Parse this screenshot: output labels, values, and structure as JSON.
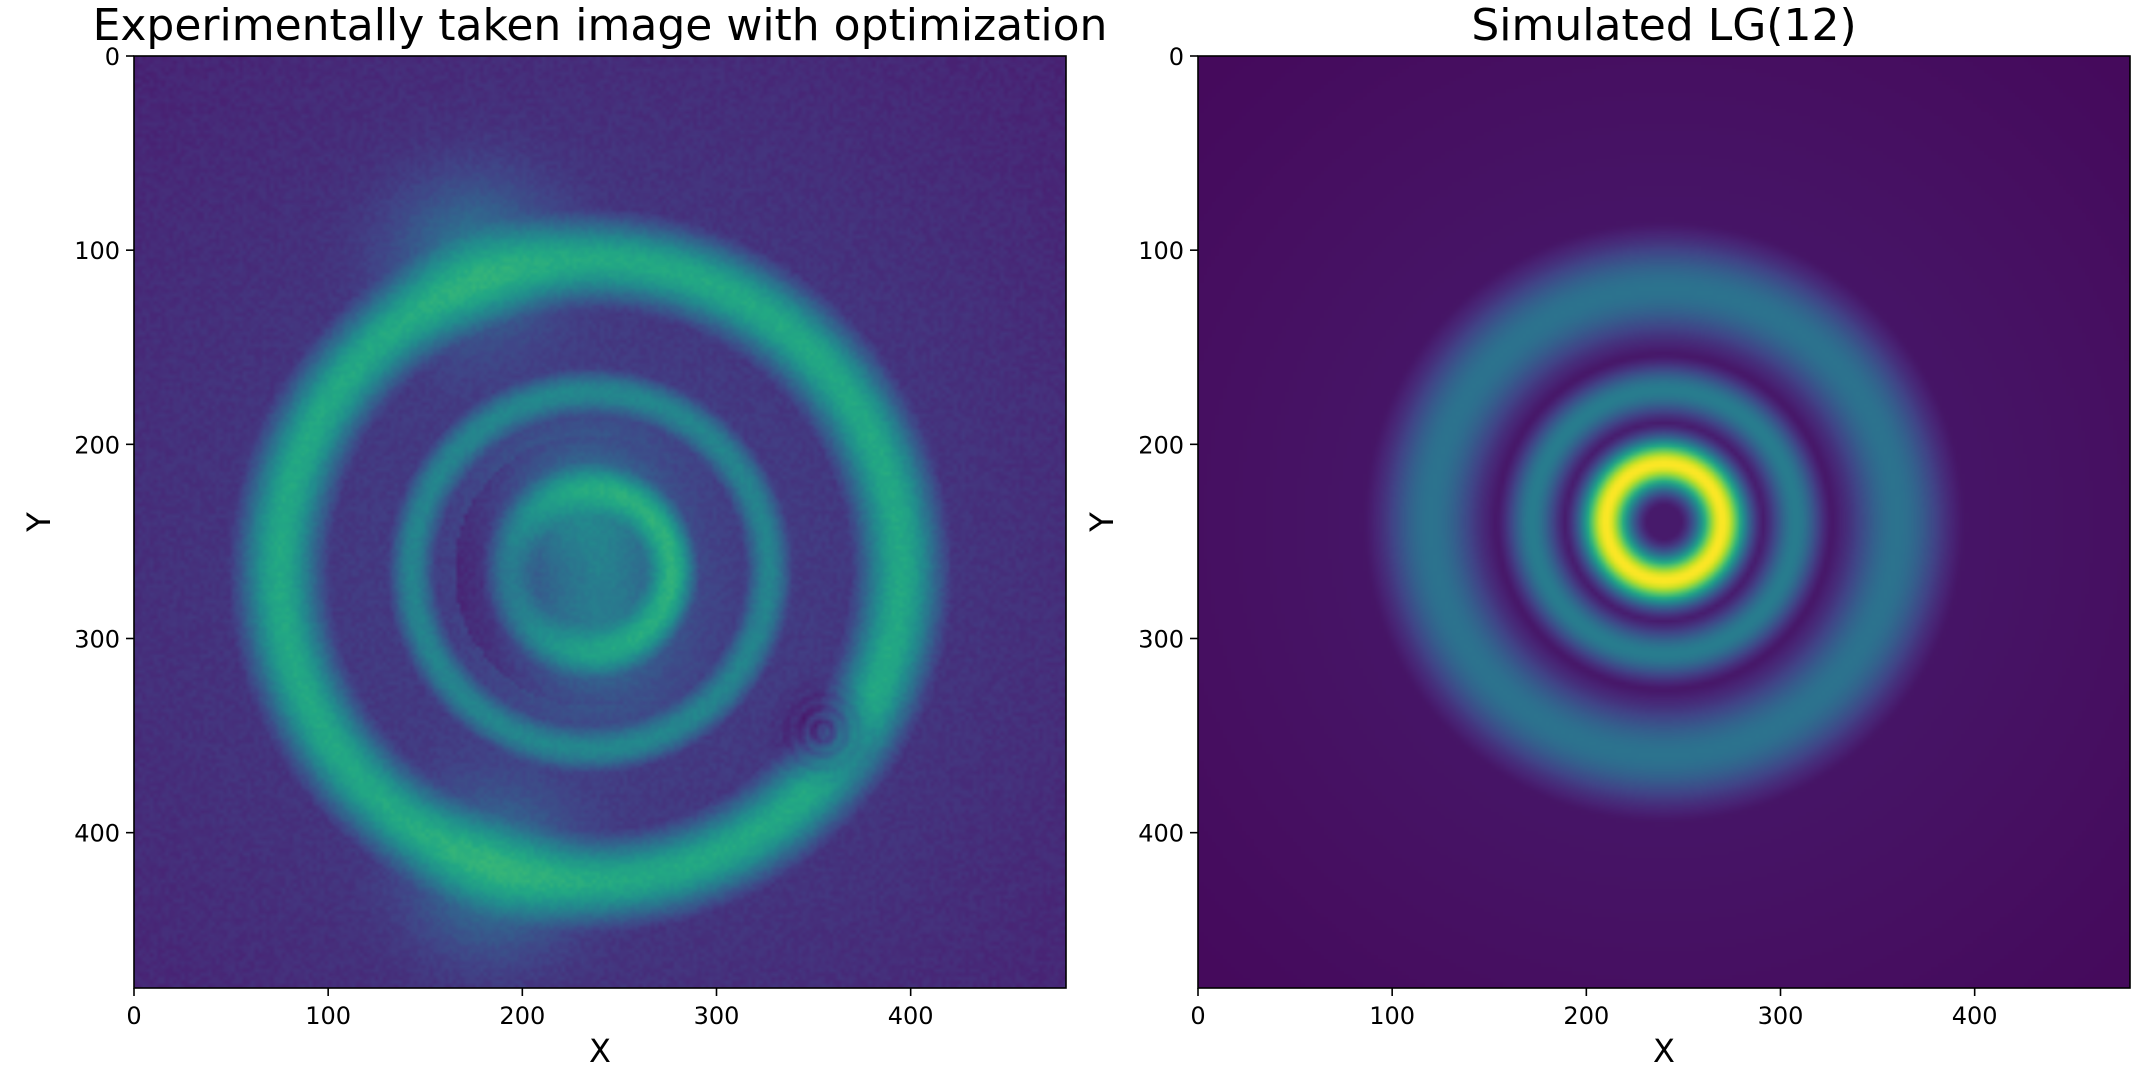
{
  "chart_data": [
    {
      "type": "heatmap",
      "title": "Experimentally taken image with optimization",
      "xlabel": "X",
      "ylabel": "Y",
      "xlim": [
        0,
        480
      ],
      "ylim": [
        480,
        0
      ],
      "x_ticks": [
        0,
        100,
        200,
        300,
        400
      ],
      "y_ticks": [
        0,
        100,
        200,
        300,
        400
      ],
      "colormap": "viridis",
      "image_size": [
        480,
        480
      ],
      "beam_center": [
        235,
        265
      ],
      "rings": [
        {
          "radius": 0,
          "sigma": 12,
          "intensity": 0.06
        },
        {
          "radius": 42,
          "sigma": 13,
          "intensity": 0.62
        },
        {
          "radius": 92,
          "sigma": 13,
          "intensity": 0.45
        },
        {
          "radius": 160,
          "sigma": 23,
          "intensity": 0.6
        }
      ],
      "notes": {
        "bright_spots": [
          {
            "x": 232,
            "y": 237,
            "intensity": 0.82
          },
          {
            "x": 238,
            "y": 295,
            "intensity": 0.7
          },
          {
            "x": 175,
            "y": 105,
            "intensity": 0.7
          },
          {
            "x": 185,
            "y": 420,
            "intensity": 0.72
          }
        ],
        "dark_defect": {
          "x": 355,
          "y": 348
        }
      }
    },
    {
      "type": "heatmap",
      "title": "Simulated LG(12)",
      "xlabel": "X",
      "ylabel": "Y",
      "xlim": [
        0,
        480
      ],
      "ylim": [
        480,
        0
      ],
      "x_ticks": [
        0,
        100,
        200,
        300,
        400
      ],
      "y_ticks": [
        0,
        100,
        200,
        300,
        400
      ],
      "colormap": "viridis",
      "image_size": [
        480,
        480
      ],
      "beam_center": [
        240,
        240
      ],
      "rings": [
        {
          "radius": 0,
          "sigma": 10,
          "intensity": 0.02
        },
        {
          "radius": 30,
          "sigma": 13,
          "intensity": 1.0
        },
        {
          "radius": 68,
          "sigma": 13,
          "intensity": 0.42
        },
        {
          "radius": 120,
          "sigma": 25,
          "intensity": 0.38
        }
      ]
    }
  ]
}
